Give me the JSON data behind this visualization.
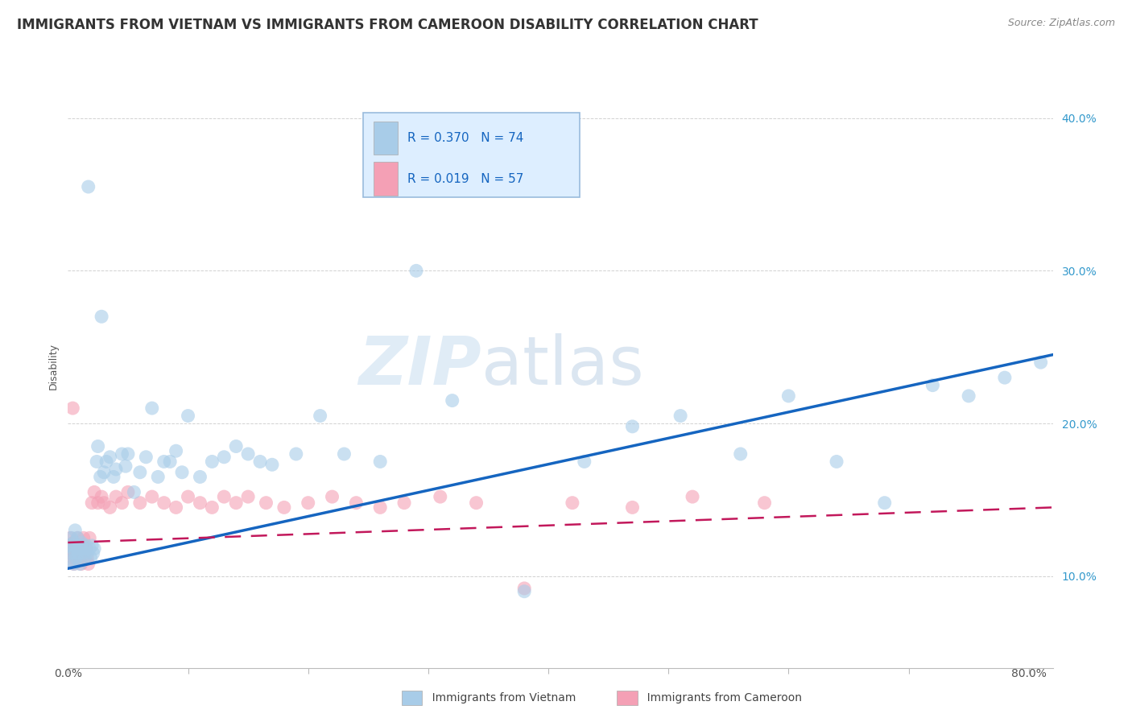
{
  "title": "IMMIGRANTS FROM VIETNAM VS IMMIGRANTS FROM CAMEROON DISABILITY CORRELATION CHART",
  "source": "Source: ZipAtlas.com",
  "ylabel": "Disability",
  "xlim": [
    0.0,
    0.82
  ],
  "ylim": [
    0.04,
    0.435
  ],
  "yticks": [
    0.1,
    0.2,
    0.3,
    0.4
  ],
  "ytick_labels": [
    "10.0%",
    "20.0%",
    "30.0%",
    "40.0%"
  ],
  "xtick_labels": [
    "0.0%",
    "80.0%"
  ],
  "series_vietnam": {
    "label": "Immigrants from Vietnam",
    "color": "#a8cce8",
    "edge_color": "none",
    "R": 0.37,
    "N": 74,
    "x": [
      0.001,
      0.002,
      0.003,
      0.003,
      0.004,
      0.005,
      0.005,
      0.006,
      0.006,
      0.007,
      0.007,
      0.008,
      0.009,
      0.01,
      0.01,
      0.011,
      0.012,
      0.013,
      0.014,
      0.015,
      0.016,
      0.017,
      0.018,
      0.019,
      0.02,
      0.021,
      0.022,
      0.024,
      0.025,
      0.027,
      0.028,
      0.03,
      0.032,
      0.035,
      0.038,
      0.04,
      0.045,
      0.048,
      0.05,
      0.055,
      0.06,
      0.065,
      0.07,
      0.075,
      0.08,
      0.085,
      0.09,
      0.095,
      0.1,
      0.11,
      0.12,
      0.13,
      0.14,
      0.15,
      0.16,
      0.17,
      0.19,
      0.21,
      0.23,
      0.26,
      0.29,
      0.32,
      0.38,
      0.43,
      0.47,
      0.51,
      0.56,
      0.6,
      0.64,
      0.68,
      0.72,
      0.75,
      0.78,
      0.81
    ],
    "y": [
      0.12,
      0.115,
      0.125,
      0.11,
      0.118,
      0.122,
      0.108,
      0.13,
      0.115,
      0.118,
      0.112,
      0.125,
      0.115,
      0.12,
      0.108,
      0.122,
      0.115,
      0.118,
      0.112,
      0.12,
      0.115,
      0.355,
      0.118,
      0.112,
      0.12,
      0.115,
      0.118,
      0.175,
      0.185,
      0.165,
      0.27,
      0.168,
      0.175,
      0.178,
      0.165,
      0.17,
      0.18,
      0.172,
      0.18,
      0.155,
      0.168,
      0.178,
      0.21,
      0.165,
      0.175,
      0.175,
      0.182,
      0.168,
      0.205,
      0.165,
      0.175,
      0.178,
      0.185,
      0.18,
      0.175,
      0.173,
      0.18,
      0.205,
      0.18,
      0.175,
      0.3,
      0.215,
      0.09,
      0.175,
      0.198,
      0.205,
      0.18,
      0.218,
      0.175,
      0.148,
      0.225,
      0.218,
      0.23,
      0.24
    ]
  },
  "series_cameroon": {
    "label": "Immigrants from Cameroon",
    "color": "#f4a0b5",
    "edge_color": "none",
    "R": 0.019,
    "N": 57,
    "x": [
      0.001,
      0.002,
      0.002,
      0.003,
      0.004,
      0.004,
      0.005,
      0.005,
      0.006,
      0.006,
      0.007,
      0.007,
      0.008,
      0.009,
      0.01,
      0.01,
      0.011,
      0.012,
      0.013,
      0.014,
      0.015,
      0.016,
      0.017,
      0.018,
      0.02,
      0.022,
      0.025,
      0.028,
      0.03,
      0.035,
      0.04,
      0.045,
      0.05,
      0.06,
      0.07,
      0.08,
      0.09,
      0.1,
      0.11,
      0.12,
      0.13,
      0.14,
      0.15,
      0.165,
      0.18,
      0.2,
      0.22,
      0.24,
      0.26,
      0.28,
      0.31,
      0.34,
      0.38,
      0.42,
      0.47,
      0.52,
      0.58
    ],
    "y": [
      0.12,
      0.115,
      0.125,
      0.118,
      0.112,
      0.21,
      0.108,
      0.122,
      0.118,
      0.115,
      0.12,
      0.112,
      0.125,
      0.115,
      0.118,
      0.112,
      0.108,
      0.12,
      0.125,
      0.115,
      0.118,
      0.112,
      0.108,
      0.125,
      0.148,
      0.155,
      0.148,
      0.152,
      0.148,
      0.145,
      0.152,
      0.148,
      0.155,
      0.148,
      0.152,
      0.148,
      0.145,
      0.152,
      0.148,
      0.145,
      0.152,
      0.148,
      0.152,
      0.148,
      0.145,
      0.148,
      0.152,
      0.148,
      0.145,
      0.148,
      0.152,
      0.148,
      0.092,
      0.148,
      0.145,
      0.152,
      0.148
    ]
  },
  "vietnam_line": {
    "color": "#1565c0",
    "x0": 0.0,
    "y0": 0.105,
    "x1": 0.82,
    "y1": 0.245
  },
  "cameroon_line": {
    "color": "#c2185b",
    "x0": 0.0,
    "y0": 0.122,
    "x1": 0.82,
    "y1": 0.145
  },
  "watermark_zip": "ZIP",
  "watermark_atlas": "atlas",
  "background_color": "#ffffff",
  "grid_color": "#cccccc",
  "legend_bg": "#ddeeff",
  "legend_border": "#99bbdd",
  "legend_vietnam_color": "#a8cce8",
  "legend_cameroon_color": "#f4a0b5",
  "legend_text_color_vietnam": "#1565c0",
  "legend_text_color_cameroon": "#c2185b",
  "title_fontsize": 12,
  "axis_label_fontsize": 9
}
